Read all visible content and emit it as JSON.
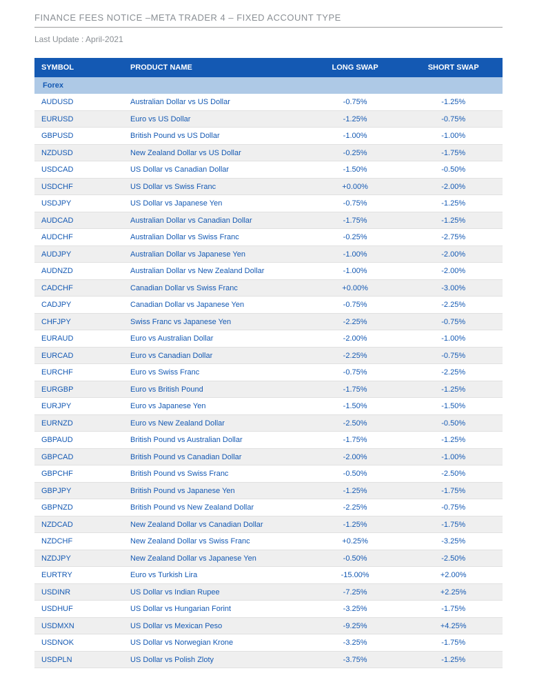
{
  "title": "FINANCE FEES NOTICE –META TRADER 4 – FIXED ACCOUNT TYPE",
  "last_update_label": "Last Update : April-2021",
  "columns": {
    "symbol": "SYMBOL",
    "product": "PRODUCT NAME",
    "long": "LONG SWAP",
    "short": "SHORT SWAP"
  },
  "section_label": "Forex",
  "rows": [
    {
      "sym": "AUDUSD",
      "name": "Australian Dollar vs US Dollar",
      "long": "-0.75%",
      "short": "-1.25%"
    },
    {
      "sym": "EURUSD",
      "name": "Euro vs US Dollar",
      "long": "-1.25%",
      "short": "-0.75%"
    },
    {
      "sym": "GBPUSD",
      "name": "British Pound vs US Dollar",
      "long": "-1.00%",
      "short": "-1.00%"
    },
    {
      "sym": "NZDUSD",
      "name": "New Zealand Dollar vs US Dollar",
      "long": "-0.25%",
      "short": "-1.75%"
    },
    {
      "sym": "USDCAD",
      "name": "US Dollar vs Canadian Dollar",
      "long": "-1.50%",
      "short": "-0.50%"
    },
    {
      "sym": "USDCHF",
      "name": "US Dollar vs Swiss Franc",
      "long": "+0.00%",
      "short": "-2.00%"
    },
    {
      "sym": "USDJPY",
      "name": "US Dollar vs Japanese Yen",
      "long": "-0.75%",
      "short": "-1.25%"
    },
    {
      "sym": "AUDCAD",
      "name": "Australian Dollar vs Canadian Dollar",
      "long": "-1.75%",
      "short": "-1.25%"
    },
    {
      "sym": "AUDCHF",
      "name": "Australian Dollar vs Swiss Franc",
      "long": "-0.25%",
      "short": "-2.75%"
    },
    {
      "sym": "AUDJPY",
      "name": "Australian Dollar vs Japanese Yen",
      "long": "-1.00%",
      "short": "-2.00%"
    },
    {
      "sym": "AUDNZD",
      "name": "Australian Dollar vs New Zealand Dollar",
      "long": "-1.00%",
      "short": "-2.00%"
    },
    {
      "sym": "CADCHF",
      "name": "Canadian Dollar vs Swiss Franc",
      "long": "+0.00%",
      "short": "-3.00%"
    },
    {
      "sym": "CADJPY",
      "name": "Canadian Dollar vs Japanese Yen",
      "long": "-0.75%",
      "short": "-2.25%"
    },
    {
      "sym": "CHFJPY",
      "name": "Swiss Franc vs Japanese Yen",
      "long": "-2.25%",
      "short": "-0.75%"
    },
    {
      "sym": "EURAUD",
      "name": "Euro vs Australian Dollar",
      "long": "-2.00%",
      "short": "-1.00%"
    },
    {
      "sym": "EURCAD",
      "name": "Euro vs Canadian Dollar",
      "long": "-2.25%",
      "short": "-0.75%"
    },
    {
      "sym": "EURCHF",
      "name": "Euro vs Swiss Franc",
      "long": "-0.75%",
      "short": "-2.25%"
    },
    {
      "sym": "EURGBP",
      "name": "Euro vs British Pound",
      "long": "-1.75%",
      "short": "-1.25%"
    },
    {
      "sym": "EURJPY",
      "name": "Euro vs Japanese Yen",
      "long": "-1.50%",
      "short": "-1.50%"
    },
    {
      "sym": "EURNZD",
      "name": "Euro vs New Zealand Dollar",
      "long": "-2.50%",
      "short": "-0.50%"
    },
    {
      "sym": "GBPAUD",
      "name": "British Pound vs Australian Dollar",
      "long": "-1.75%",
      "short": "-1.25%"
    },
    {
      "sym": "GBPCAD",
      "name": "British Pound vs Canadian Dollar",
      "long": "-2.00%",
      "short": "-1.00%"
    },
    {
      "sym": "GBPCHF",
      "name": "British Pound vs Swiss Franc",
      "long": "-0.50%",
      "short": "-2.50%"
    },
    {
      "sym": "GBPJPY",
      "name": "British Pound vs Japanese Yen",
      "long": "-1.25%",
      "short": "-1.75%"
    },
    {
      "sym": "GBPNZD",
      "name": "British Pound vs New Zealand Dollar",
      "long": "-2.25%",
      "short": "-0.75%"
    },
    {
      "sym": "NZDCAD",
      "name": "New Zealand Dollar vs Canadian Dollar",
      "long": "-1.25%",
      "short": "-1.75%"
    },
    {
      "sym": "NZDCHF",
      "name": "New Zealand Dollar vs Swiss Franc",
      "long": "+0.25%",
      "short": "-3.25%"
    },
    {
      "sym": "NZDJPY",
      "name": "New Zealand Dollar vs Japanese Yen",
      "long": "-0.50%",
      "short": "-2.50%"
    },
    {
      "sym": "EURTRY",
      "name": "Euro vs Turkish Lira",
      "long": "-15.00%",
      "short": "+2.00%"
    },
    {
      "sym": "USDINR",
      "name": "US Dollar vs Indian Rupee",
      "long": "-7.25%",
      "short": "+2.25%"
    },
    {
      "sym": "USDHUF",
      "name": "US Dollar vs Hungarian Forint",
      "long": "-3.25%",
      "short": "-1.75%"
    },
    {
      "sym": "USDMXN",
      "name": "US Dollar vs Mexican Peso",
      "long": "-9.25%",
      "short": "+4.25%"
    },
    {
      "sym": "USDNOK",
      "name": "US Dollar vs Norwegian Krone",
      "long": "-3.25%",
      "short": "-1.75%"
    },
    {
      "sym": "USDPLN",
      "name": "US Dollar vs Polish Zloty",
      "long": "-3.75%",
      "short": "-1.25%"
    }
  ],
  "colors": {
    "header_bg": "#1459b3",
    "header_text": "#ffffff",
    "section_bg": "#aec9e6",
    "link": "#1459b3",
    "neg": "#c0392b",
    "pos": "#1459b3",
    "alt_row": "#efefef",
    "border": "#e0e0e0",
    "muted": "#8a8f94"
  }
}
